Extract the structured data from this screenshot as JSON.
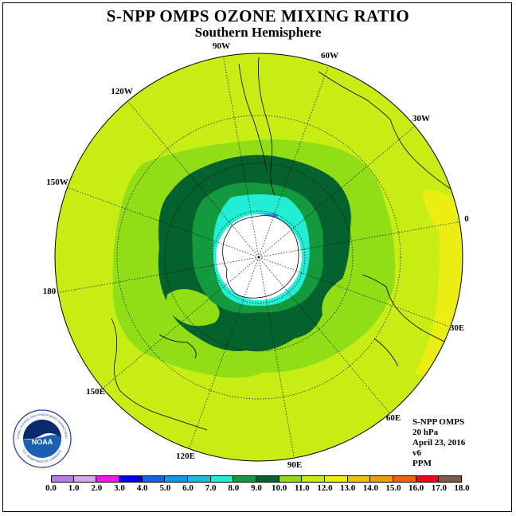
{
  "title": "S-NPP OMPS OZONE MIXING RATIO",
  "subtitle": "Southern Hemisphere",
  "longitude_labels": [
    "90W",
    "60W",
    "30W",
    "0",
    "30E",
    "60E",
    "90E",
    "120E",
    "150E",
    "180",
    "150W",
    "120W"
  ],
  "info": {
    "instrument": "S-NPP OMPS",
    "level": "20 hPa",
    "date": "April 23, 2016",
    "version": "v6",
    "units": "PPM"
  },
  "logo": {
    "text": "NOAA",
    "ring_text": "NATIONAL OCEANIC AND ATMOSPHERIC ADMINISTRATION",
    "ring_text_bottom": "U.S. DEPARTMENT OF COMMERCE"
  },
  "colorbar": {
    "ticks": [
      "0.0",
      "1.0",
      "2.0",
      "3.0",
      "4.0",
      "5.0",
      "6.0",
      "7.0",
      "8.0",
      "9.0",
      "10.0",
      "11.0",
      "12.0",
      "13.0",
      "14.0",
      "15.0",
      "16.0",
      "17.0",
      "18.0"
    ],
    "colors": [
      "#b77fe6",
      "#dba3ee",
      "#ee17ee",
      "#0000e6",
      "#1266e6",
      "#1896e6",
      "#20b6e6",
      "#22eed6",
      "#139a3c",
      "#05622e",
      "#91dd16",
      "#c6ee14",
      "#eaee12",
      "#eec212",
      "#ee9d12",
      "#ee6012",
      "#ee0612",
      "#7e5a46"
    ]
  }
}
